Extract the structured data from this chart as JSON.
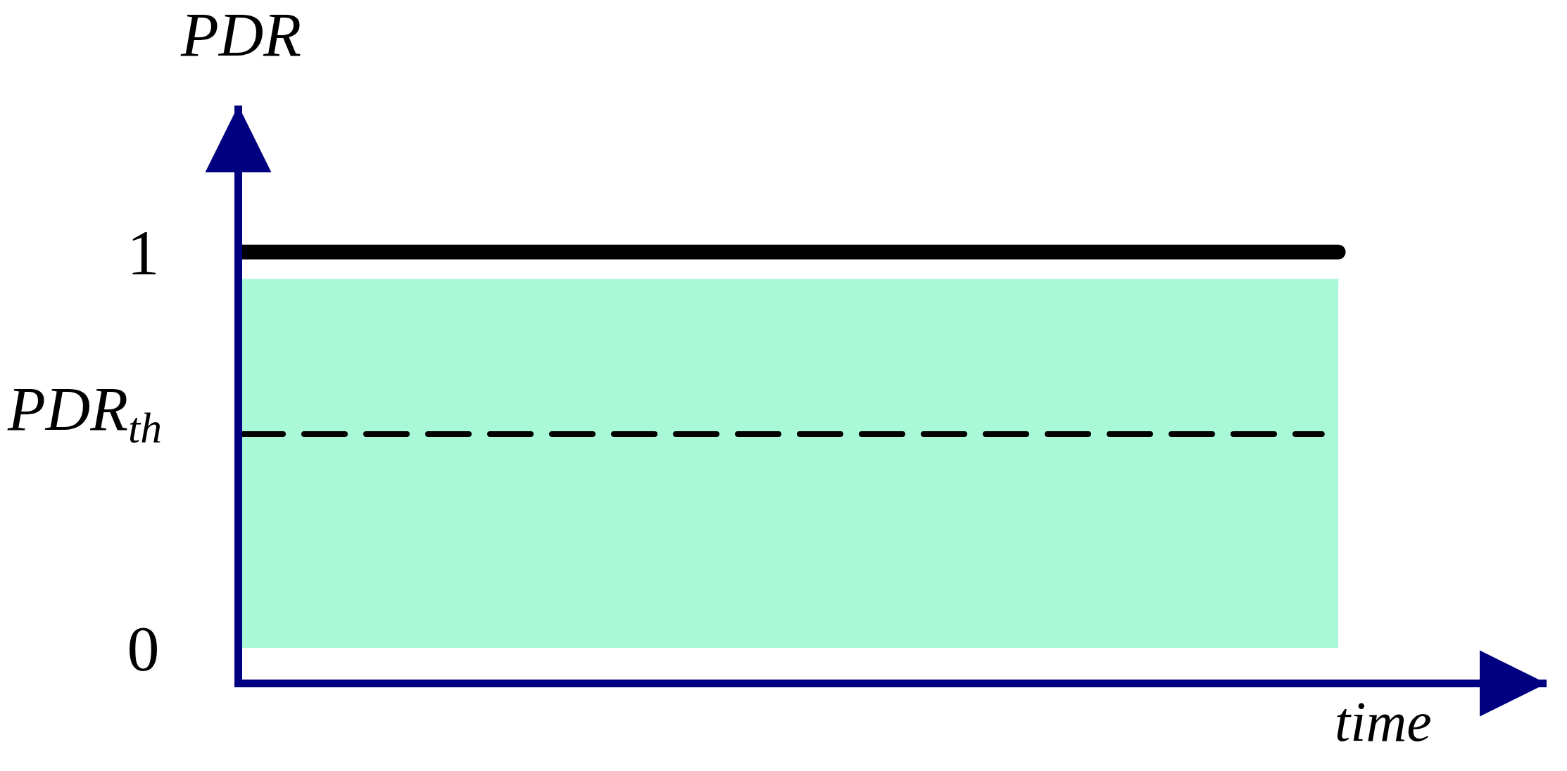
{
  "chart_data": {
    "type": "line",
    "xlabel": "time",
    "ylabel": "PDR",
    "categories": [
      null,
      null
    ],
    "ylim": [
      -0.08,
      1.37
    ],
    "yticks": [
      0,
      1
    ],
    "series": [
      {
        "type": "area",
        "color": "#a9f9d9",
        "values": [
          0.93,
          0.93
        ]
      },
      {
        "color": "#000000",
        "values": [
          1,
          1
        ]
      }
    ],
    "ref_lines": [
      {
        "axis": "y",
        "value": 0.54,
        "label": "PDR$_{th}$",
        "line_style": "dashed",
        "color": "#000000"
      }
    ],
    "grid": false,
    "tick_labels": "y"
  }
}
